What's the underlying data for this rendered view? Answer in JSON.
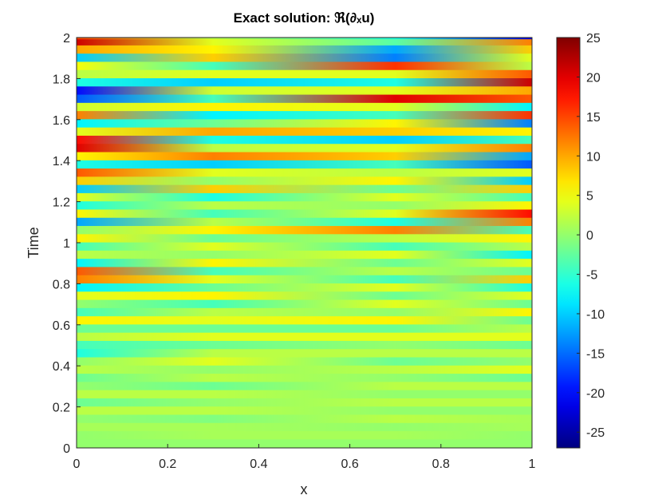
{
  "chart_data": {
    "type": "heatmap",
    "title": "Exact solution: ℜ(∂ₓu)",
    "xlabel": "x",
    "ylabel": "Time",
    "xlim": [
      0,
      1
    ],
    "ylim": [
      0,
      2
    ],
    "x_ticks": [
      "0",
      "0.2",
      "0.4",
      "0.6",
      "0.8",
      "1"
    ],
    "y_ticks": [
      "0",
      "0.2",
      "0.4",
      "0.6",
      "0.8",
      "1",
      "1.2",
      "1.4",
      "1.6",
      "1.8",
      "2"
    ],
    "colorbar": {
      "range": [
        -27,
        25
      ],
      "ticks": [
        "-25",
        "-20",
        "-15",
        "-10",
        "-5",
        "0",
        "5",
        "10",
        "15",
        "20",
        "25"
      ],
      "colormap": "jet"
    },
    "grid": false,
    "bands": [
      {
        "t": 2.0,
        "x": [
          0,
          0.3,
          0.7,
          1
        ],
        "v": [
          15,
          2,
          -6,
          -22
        ]
      },
      {
        "t": 1.97,
        "x": [
          0,
          0.3,
          0.7,
          1
        ],
        "v": [
          21,
          4,
          -3,
          12
        ]
      },
      {
        "t": 1.94,
        "x": [
          0,
          0.3,
          0.7,
          1
        ],
        "v": [
          10,
          6,
          -12,
          8
        ]
      },
      {
        "t": 1.9,
        "x": [
          0,
          0.3,
          0.7,
          1
        ],
        "v": [
          -10,
          8,
          -14,
          4
        ]
      },
      {
        "t": 1.86,
        "x": [
          0,
          0.3,
          0.7,
          1
        ],
        "v": [
          5,
          -4,
          16,
          2
        ]
      },
      {
        "t": 1.82,
        "x": [
          0,
          0.3,
          0.7,
          1
        ],
        "v": [
          2,
          4,
          4,
          14
        ]
      },
      {
        "t": 1.78,
        "x": [
          0,
          0.3,
          0.7,
          1
        ],
        "v": [
          -6,
          -10,
          -6,
          21
        ]
      },
      {
        "t": 1.74,
        "x": [
          0,
          0.3,
          0.7,
          1
        ],
        "v": [
          -20,
          3,
          4,
          10
        ]
      },
      {
        "t": 1.7,
        "x": [
          0,
          0.3,
          0.7,
          1
        ],
        "v": [
          -16,
          -4,
          20,
          14
        ]
      },
      {
        "t": 1.66,
        "x": [
          0,
          0.3,
          0.7,
          1
        ],
        "v": [
          3,
          6,
          4,
          -8
        ]
      },
      {
        "t": 1.62,
        "x": [
          0,
          0.3,
          0.7,
          1
        ],
        "v": [
          12,
          -8,
          -4,
          16
        ]
      },
      {
        "t": 1.58,
        "x": [
          0,
          0.3,
          0.7,
          1
        ],
        "v": [
          -8,
          -2,
          6,
          -14
        ]
      },
      {
        "t": 1.54,
        "x": [
          0,
          0.3,
          0.7,
          1
        ],
        "v": [
          4,
          10,
          8,
          6
        ]
      },
      {
        "t": 1.5,
        "x": [
          0,
          0.3,
          0.7,
          1
        ],
        "v": [
          18,
          -6,
          -10,
          -4
        ]
      },
      {
        "t": 1.46,
        "x": [
          0,
          0.3,
          0.7,
          1
        ],
        "v": [
          20,
          2,
          4,
          12
        ]
      },
      {
        "t": 1.42,
        "x": [
          0,
          0.3,
          0.7,
          1
        ],
        "v": [
          6,
          12,
          8,
          -12
        ]
      },
      {
        "t": 1.38,
        "x": [
          0,
          0.3,
          0.7,
          1
        ],
        "v": [
          -6,
          -10,
          -4,
          -16
        ]
      },
      {
        "t": 1.34,
        "x": [
          0,
          0.3,
          0.7,
          1
        ],
        "v": [
          14,
          4,
          2,
          4
        ]
      },
      {
        "t": 1.3,
        "x": [
          0,
          0.3,
          0.7,
          1
        ],
        "v": [
          8,
          0,
          6,
          -10
        ]
      },
      {
        "t": 1.26,
        "x": [
          0,
          0.3,
          0.7,
          1
        ],
        "v": [
          -10,
          8,
          -2,
          8
        ]
      },
      {
        "t": 1.22,
        "x": [
          0,
          0.3,
          0.7,
          1
        ],
        "v": [
          4,
          -6,
          4,
          -4
        ]
      },
      {
        "t": 1.18,
        "x": [
          0,
          0.3,
          0.7,
          1
        ],
        "v": [
          -6,
          2,
          0,
          6
        ]
      },
      {
        "t": 1.14,
        "x": [
          0,
          0.3,
          0.7,
          1
        ],
        "v": [
          6,
          -4,
          4,
          18
        ]
      },
      {
        "t": 1.1,
        "x": [
          0,
          0.3,
          0.7,
          1
        ],
        "v": [
          -12,
          2,
          -6,
          12
        ]
      },
      {
        "t": 1.06,
        "x": [
          0,
          0.3,
          0.7,
          1
        ],
        "v": [
          0,
          6,
          12,
          -4
        ]
      },
      {
        "t": 1.02,
        "x": [
          0,
          0.3,
          0.7,
          1
        ],
        "v": [
          6,
          -2,
          2,
          6
        ]
      },
      {
        "t": 0.98,
        "x": [
          0,
          0.3,
          0.7,
          1
        ],
        "v": [
          -4,
          4,
          -4,
          2
        ]
      },
      {
        "t": 0.94,
        "x": [
          0,
          0.3,
          0.7,
          1
        ],
        "v": [
          2,
          0,
          4,
          -8
        ]
      },
      {
        "t": 0.9,
        "x": [
          0,
          0.3,
          0.7,
          1
        ],
        "v": [
          -8,
          6,
          -2,
          4
        ]
      },
      {
        "t": 0.86,
        "x": [
          0,
          0.3,
          0.7,
          1
        ],
        "v": [
          14,
          -4,
          2,
          -2
        ]
      },
      {
        "t": 0.82,
        "x": [
          0,
          0.3,
          0.7,
          1
        ],
        "v": [
          12,
          4,
          -4,
          8
        ]
      },
      {
        "t": 0.78,
        "x": [
          0,
          0.3,
          0.7,
          1
        ],
        "v": [
          -8,
          -2,
          4,
          -6
        ]
      },
      {
        "t": 0.74,
        "x": [
          0,
          0.3,
          0.7,
          1
        ],
        "v": [
          4,
          6,
          -2,
          4
        ]
      },
      {
        "t": 0.7,
        "x": [
          0,
          0.3,
          0.7,
          1
        ],
        "v": [
          0,
          -4,
          4,
          -2
        ]
      },
      {
        "t": 0.66,
        "x": [
          0,
          0.3,
          0.7,
          1
        ],
        "v": [
          -4,
          2,
          0,
          6
        ]
      },
      {
        "t": 0.62,
        "x": [
          0,
          0.3,
          0.7,
          1
        ],
        "v": [
          6,
          4,
          6,
          -2
        ]
      },
      {
        "t": 0.58,
        "x": [
          0,
          0.3,
          0.7,
          1
        ],
        "v": [
          -2,
          -2,
          -2,
          2
        ]
      },
      {
        "t": 0.54,
        "x": [
          0,
          0.3,
          0.7,
          1
        ],
        "v": [
          2,
          4,
          4,
          4
        ]
      },
      {
        "t": 0.5,
        "x": [
          0,
          0.3,
          0.7,
          1
        ],
        "v": [
          -4,
          -2,
          0,
          -2
        ]
      },
      {
        "t": 0.46,
        "x": [
          0,
          0.3,
          0.7,
          1
        ],
        "v": [
          -6,
          2,
          2,
          2
        ]
      },
      {
        "t": 0.42,
        "x": [
          0,
          0.3,
          0.7,
          1
        ],
        "v": [
          0,
          4,
          -2,
          0
        ]
      },
      {
        "t": 0.38,
        "x": [
          0,
          0.3,
          0.7,
          1
        ],
        "v": [
          2,
          0,
          2,
          4
        ]
      },
      {
        "t": 0.34,
        "x": [
          0,
          0.3,
          0.7,
          1
        ],
        "v": [
          -2,
          2,
          0,
          -2
        ]
      },
      {
        "t": 0.3,
        "x": [
          0,
          0.3,
          0.7,
          1
        ],
        "v": [
          0,
          -2,
          2,
          2
        ]
      },
      {
        "t": 0.26,
        "x": [
          0,
          0.3,
          0.7,
          1
        ],
        "v": [
          2,
          2,
          0,
          0
        ]
      },
      {
        "t": 0.22,
        "x": [
          0,
          0.3,
          0.7,
          1
        ],
        "v": [
          -2,
          0,
          2,
          2
        ]
      },
      {
        "t": 0.18,
        "x": [
          0,
          0.3,
          0.7,
          1
        ],
        "v": [
          2,
          2,
          0,
          0
        ]
      },
      {
        "t": 0.14,
        "x": [
          0,
          0.3,
          0.7,
          1
        ],
        "v": [
          0,
          -1,
          2,
          1
        ]
      },
      {
        "t": 0.1,
        "x": [
          0,
          0.3,
          0.7,
          1
        ],
        "v": [
          1,
          1,
          0,
          1
        ]
      },
      {
        "t": 0.06,
        "x": [
          0,
          0.3,
          0.7,
          1
        ],
        "v": [
          0,
          1,
          1,
          0
        ]
      },
      {
        "t": 0.02,
        "x": [
          0,
          0.3,
          0.7,
          1
        ],
        "v": [
          0,
          0,
          0,
          0
        ]
      }
    ]
  }
}
